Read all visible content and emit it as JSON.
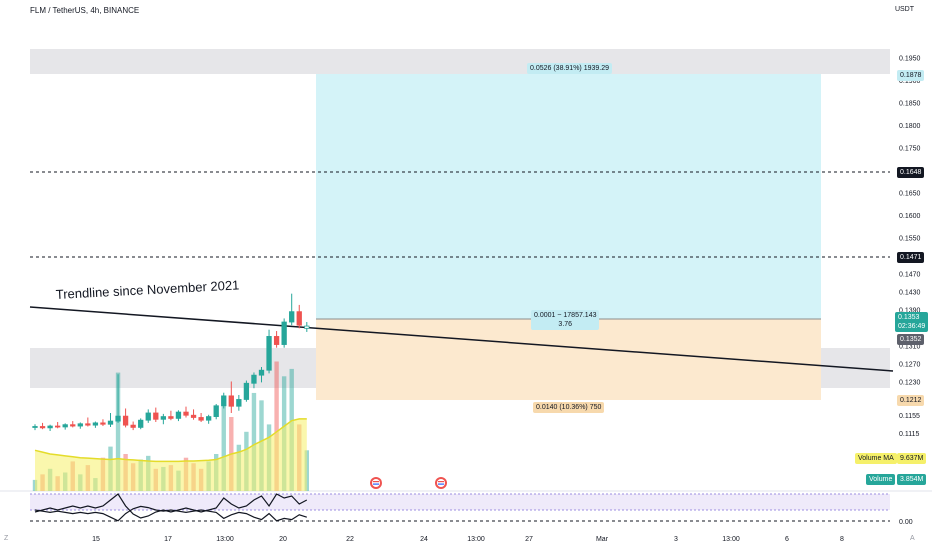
{
  "header": {
    "symbol_line": "FLM / TetherUS, 4h, BINANCE"
  },
  "axis": {
    "unit": "USDT",
    "y_ticks": [
      "0.1950",
      "0.1900",
      "0.1850",
      "0.1800",
      "0.1750",
      "0.1700",
      "0.1650",
      "0.1600",
      "0.1550",
      "0.1510",
      "0.1470",
      "0.1430",
      "0.1390",
      "0.1350",
      "0.1310",
      "0.1270",
      "0.1230",
      "0.1190",
      "0.1155",
      "0.1115"
    ],
    "x_ticks": [
      "15",
      "17",
      "13:00",
      "20",
      "22",
      "24",
      "13:00",
      "27",
      "Mar",
      "3",
      "13:00",
      "6",
      "8"
    ],
    "osc_tick": "0.00",
    "corner_left": "Z",
    "corner_right": "A"
  },
  "price_labels": {
    "target": "0.1878",
    "level_upper": "0.1648",
    "level_lower": "0.1471",
    "current": "0.1353",
    "countdown": "02:36:49",
    "entry": "0.1352",
    "stop": "0.1212"
  },
  "position_tool": {
    "target_text": "0.0526 (38.91%) 1939.29",
    "entry_text_1": "0.0001 ~ 17857.143",
    "entry_text_2": "3.76",
    "stop_text": "0.0140 (10.36%) 750"
  },
  "annotation": {
    "trendline_text": "Trendline since November 2021"
  },
  "volume_labels": {
    "ma_label": "Volume MA",
    "ma_value": "9.637M",
    "vol_label": "Volume",
    "vol_value": "3.854M"
  },
  "colors": {
    "up": "#26a69a",
    "down": "#ef5350",
    "target_zone": "#d4f3f8",
    "stop_zone": "#fce9cf",
    "grey_zone": "#e6e6e9",
    "volume_ma": "#f5f06a"
  },
  "chart_data": {
    "type": "candlestick",
    "title": "FLM / TetherUS, 4h, BINANCE",
    "ylabel": "USDT",
    "candles": [
      {
        "o": 0.1128,
        "h": 0.1135,
        "l": 0.1122,
        "c": 0.113
      },
      {
        "o": 0.113,
        "h": 0.1138,
        "l": 0.1124,
        "c": 0.1127
      },
      {
        "o": 0.1127,
        "h": 0.1134,
        "l": 0.112,
        "c": 0.1131
      },
      {
        "o": 0.1131,
        "h": 0.114,
        "l": 0.1126,
        "c": 0.1129
      },
      {
        "o": 0.1129,
        "h": 0.1137,
        "l": 0.1123,
        "c": 0.1134
      },
      {
        "o": 0.1134,
        "h": 0.1142,
        "l": 0.1128,
        "c": 0.1131
      },
      {
        "o": 0.1131,
        "h": 0.1139,
        "l": 0.1125,
        "c": 0.1136
      },
      {
        "o": 0.1136,
        "h": 0.115,
        "l": 0.113,
        "c": 0.1133
      },
      {
        "o": 0.1133,
        "h": 0.1141,
        "l": 0.1127,
        "c": 0.1138
      },
      {
        "o": 0.1138,
        "h": 0.1146,
        "l": 0.1131,
        "c": 0.1135
      },
      {
        "o": 0.1135,
        "h": 0.116,
        "l": 0.1129,
        "c": 0.1142
      },
      {
        "o": 0.1142,
        "h": 0.1246,
        "l": 0.1138,
        "c": 0.1153
      },
      {
        "o": 0.1153,
        "h": 0.117,
        "l": 0.1128,
        "c": 0.1133
      },
      {
        "o": 0.1133,
        "h": 0.1141,
        "l": 0.1122,
        "c": 0.1128
      },
      {
        "o": 0.1128,
        "h": 0.1148,
        "l": 0.1124,
        "c": 0.1144
      },
      {
        "o": 0.1144,
        "h": 0.1168,
        "l": 0.1138,
        "c": 0.116
      },
      {
        "o": 0.116,
        "h": 0.1172,
        "l": 0.114,
        "c": 0.1146
      },
      {
        "o": 0.1146,
        "h": 0.1158,
        "l": 0.1135,
        "c": 0.1152
      },
      {
        "o": 0.1152,
        "h": 0.1165,
        "l": 0.1144,
        "c": 0.1148
      },
      {
        "o": 0.1148,
        "h": 0.1166,
        "l": 0.1142,
        "c": 0.1162
      },
      {
        "o": 0.1162,
        "h": 0.1174,
        "l": 0.115,
        "c": 0.1155
      },
      {
        "o": 0.1155,
        "h": 0.1168,
        "l": 0.1145,
        "c": 0.115
      },
      {
        "o": 0.115,
        "h": 0.116,
        "l": 0.114,
        "c": 0.1144
      },
      {
        "o": 0.1144,
        "h": 0.1156,
        "l": 0.1136,
        "c": 0.1152
      },
      {
        "o": 0.1152,
        "h": 0.118,
        "l": 0.1146,
        "c": 0.1176
      },
      {
        "o": 0.1176,
        "h": 0.1205,
        "l": 0.117,
        "c": 0.1198
      },
      {
        "o": 0.1198,
        "h": 0.123,
        "l": 0.116,
        "c": 0.1175
      },
      {
        "o": 0.1175,
        "h": 0.12,
        "l": 0.1165,
        "c": 0.119
      },
      {
        "o": 0.119,
        "h": 0.1232,
        "l": 0.1185,
        "c": 0.1226
      },
      {
        "o": 0.1226,
        "h": 0.125,
        "l": 0.1215,
        "c": 0.1244
      },
      {
        "o": 0.1244,
        "h": 0.1262,
        "l": 0.1228,
        "c": 0.1255
      },
      {
        "o": 0.1255,
        "h": 0.1345,
        "l": 0.1248,
        "c": 0.133
      },
      {
        "o": 0.133,
        "h": 0.1342,
        "l": 0.1305,
        "c": 0.1312
      },
      {
        "o": 0.1312,
        "h": 0.137,
        "l": 0.1305,
        "c": 0.1362
      },
      {
        "o": 0.1362,
        "h": 0.1425,
        "l": 0.1355,
        "c": 0.1385
      },
      {
        "o": 0.1385,
        "h": 0.14,
        "l": 0.1348,
        "c": 0.1355
      },
      {
        "o": 0.1348,
        "h": 0.1362,
        "l": 0.134,
        "c": 0.1353
      }
    ],
    "volume": [
      0.6,
      0.9,
      1.2,
      0.8,
      1.0,
      1.6,
      0.9,
      1.4,
      0.7,
      1.8,
      2.4,
      6.4,
      2.0,
      1.5,
      1.7,
      1.9,
      1.2,
      1.3,
      1.4,
      1.1,
      1.8,
      1.5,
      1.2,
      1.6,
      2.0,
      4.8,
      4.0,
      2.5,
      3.2,
      5.3,
      4.9,
      3.6,
      7.0,
      6.2,
      6.6,
      3.6,
      2.2
    ],
    "volume_ma": [
      2.2,
      2.1,
      2.0,
      1.95,
      1.9,
      1.85,
      1.8,
      1.78,
      1.75,
      1.72,
      1.7,
      1.75,
      1.7,
      1.68,
      1.65,
      1.62,
      1.6,
      1.6,
      1.6,
      1.6,
      1.62,
      1.62,
      1.64,
      1.66,
      1.7,
      1.85,
      2.0,
      2.1,
      2.25,
      2.5,
      2.7,
      2.9,
      3.2,
      3.5,
      3.8,
      3.9,
      3.9
    ],
    "oscillator": [
      -0.5,
      -0.4,
      -0.3,
      -0.4,
      -0.3,
      -0.2,
      -0.3,
      -0.2,
      -0.3,
      -0.2,
      0.1,
      0.4,
      -0.2,
      -0.6,
      -0.8,
      -0.7,
      -0.5,
      -0.4,
      -0.5,
      -0.4,
      -0.3,
      -0.4,
      -0.5,
      -0.4,
      -0.3,
      0.2,
      -0.1,
      -0.3,
      -0.2,
      0.1,
      0.3,
      -0.2,
      0.4,
      0.2,
      0.3,
      -0.1,
      0.1
    ],
    "levels": {
      "target": 0.1878,
      "entry": 0.1352,
      "stop": 0.1212,
      "dashed": [
        0.1648,
        0.1471
      ]
    },
    "y_range": [
      0.11,
      0.1975
    ]
  }
}
